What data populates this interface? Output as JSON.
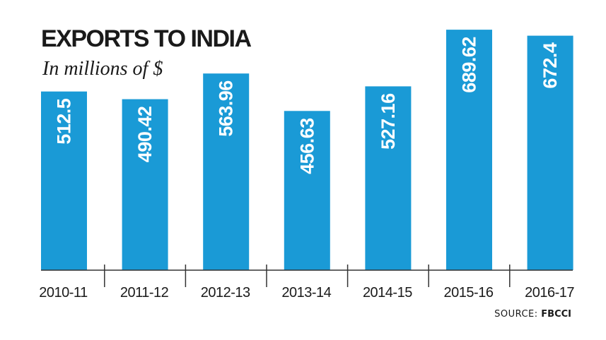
{
  "chart_data": {
    "type": "bar",
    "title": "EXPORTS TO INDIA",
    "subtitle": "In millions of $",
    "categories": [
      "2010-11",
      "2011-12",
      "2012-13",
      "2013-14",
      "2014-15",
      "2015-16",
      "2016-17"
    ],
    "values": [
      512.5,
      490.42,
      563.96,
      456.63,
      527.16,
      689.62,
      672.4
    ],
    "value_labels": [
      "512.5",
      "490.42",
      "563.96",
      "456.63",
      "527.16",
      "689.62",
      "672.4"
    ],
    "xlabel": "",
    "ylabel": "",
    "ylim": [
      0,
      700
    ],
    "grid": false,
    "bar_color": "#1a9ad6",
    "source": {
      "prefix": "SOURCE: ",
      "name": "FBCCI"
    }
  }
}
